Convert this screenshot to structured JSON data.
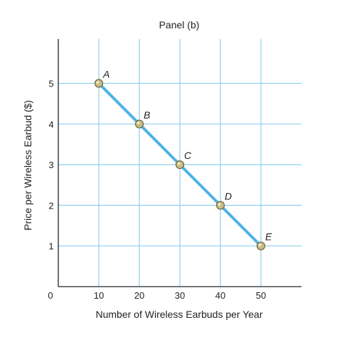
{
  "chart_data": {
    "type": "line",
    "title": "Panel (b)",
    "xlabel": "Number of Wireless Earbuds per Year",
    "ylabel": "Price per Wireless Earbud ($)",
    "xlim": [
      0,
      60
    ],
    "ylim": [
      0,
      6
    ],
    "x_ticks": [
      10,
      20,
      30,
      40,
      50
    ],
    "y_ticks": [
      1,
      2,
      3,
      4,
      5
    ],
    "origin_label": "0",
    "grid": true,
    "series": [
      {
        "points": [
          {
            "label": "A",
            "x": 10,
            "y": 5
          },
          {
            "label": "B",
            "x": 20,
            "y": 4
          },
          {
            "label": "C",
            "x": 30,
            "y": 3
          },
          {
            "label": "D",
            "x": 40,
            "y": 2
          },
          {
            "label": "E",
            "x": 50,
            "y": 1
          }
        ]
      }
    ],
    "colors": {
      "line": "#4db3e6",
      "grid": "#8fcfee",
      "axis": "#222222",
      "marker_fill": "#c9bd86",
      "marker_stroke": "#6b6440"
    }
  }
}
